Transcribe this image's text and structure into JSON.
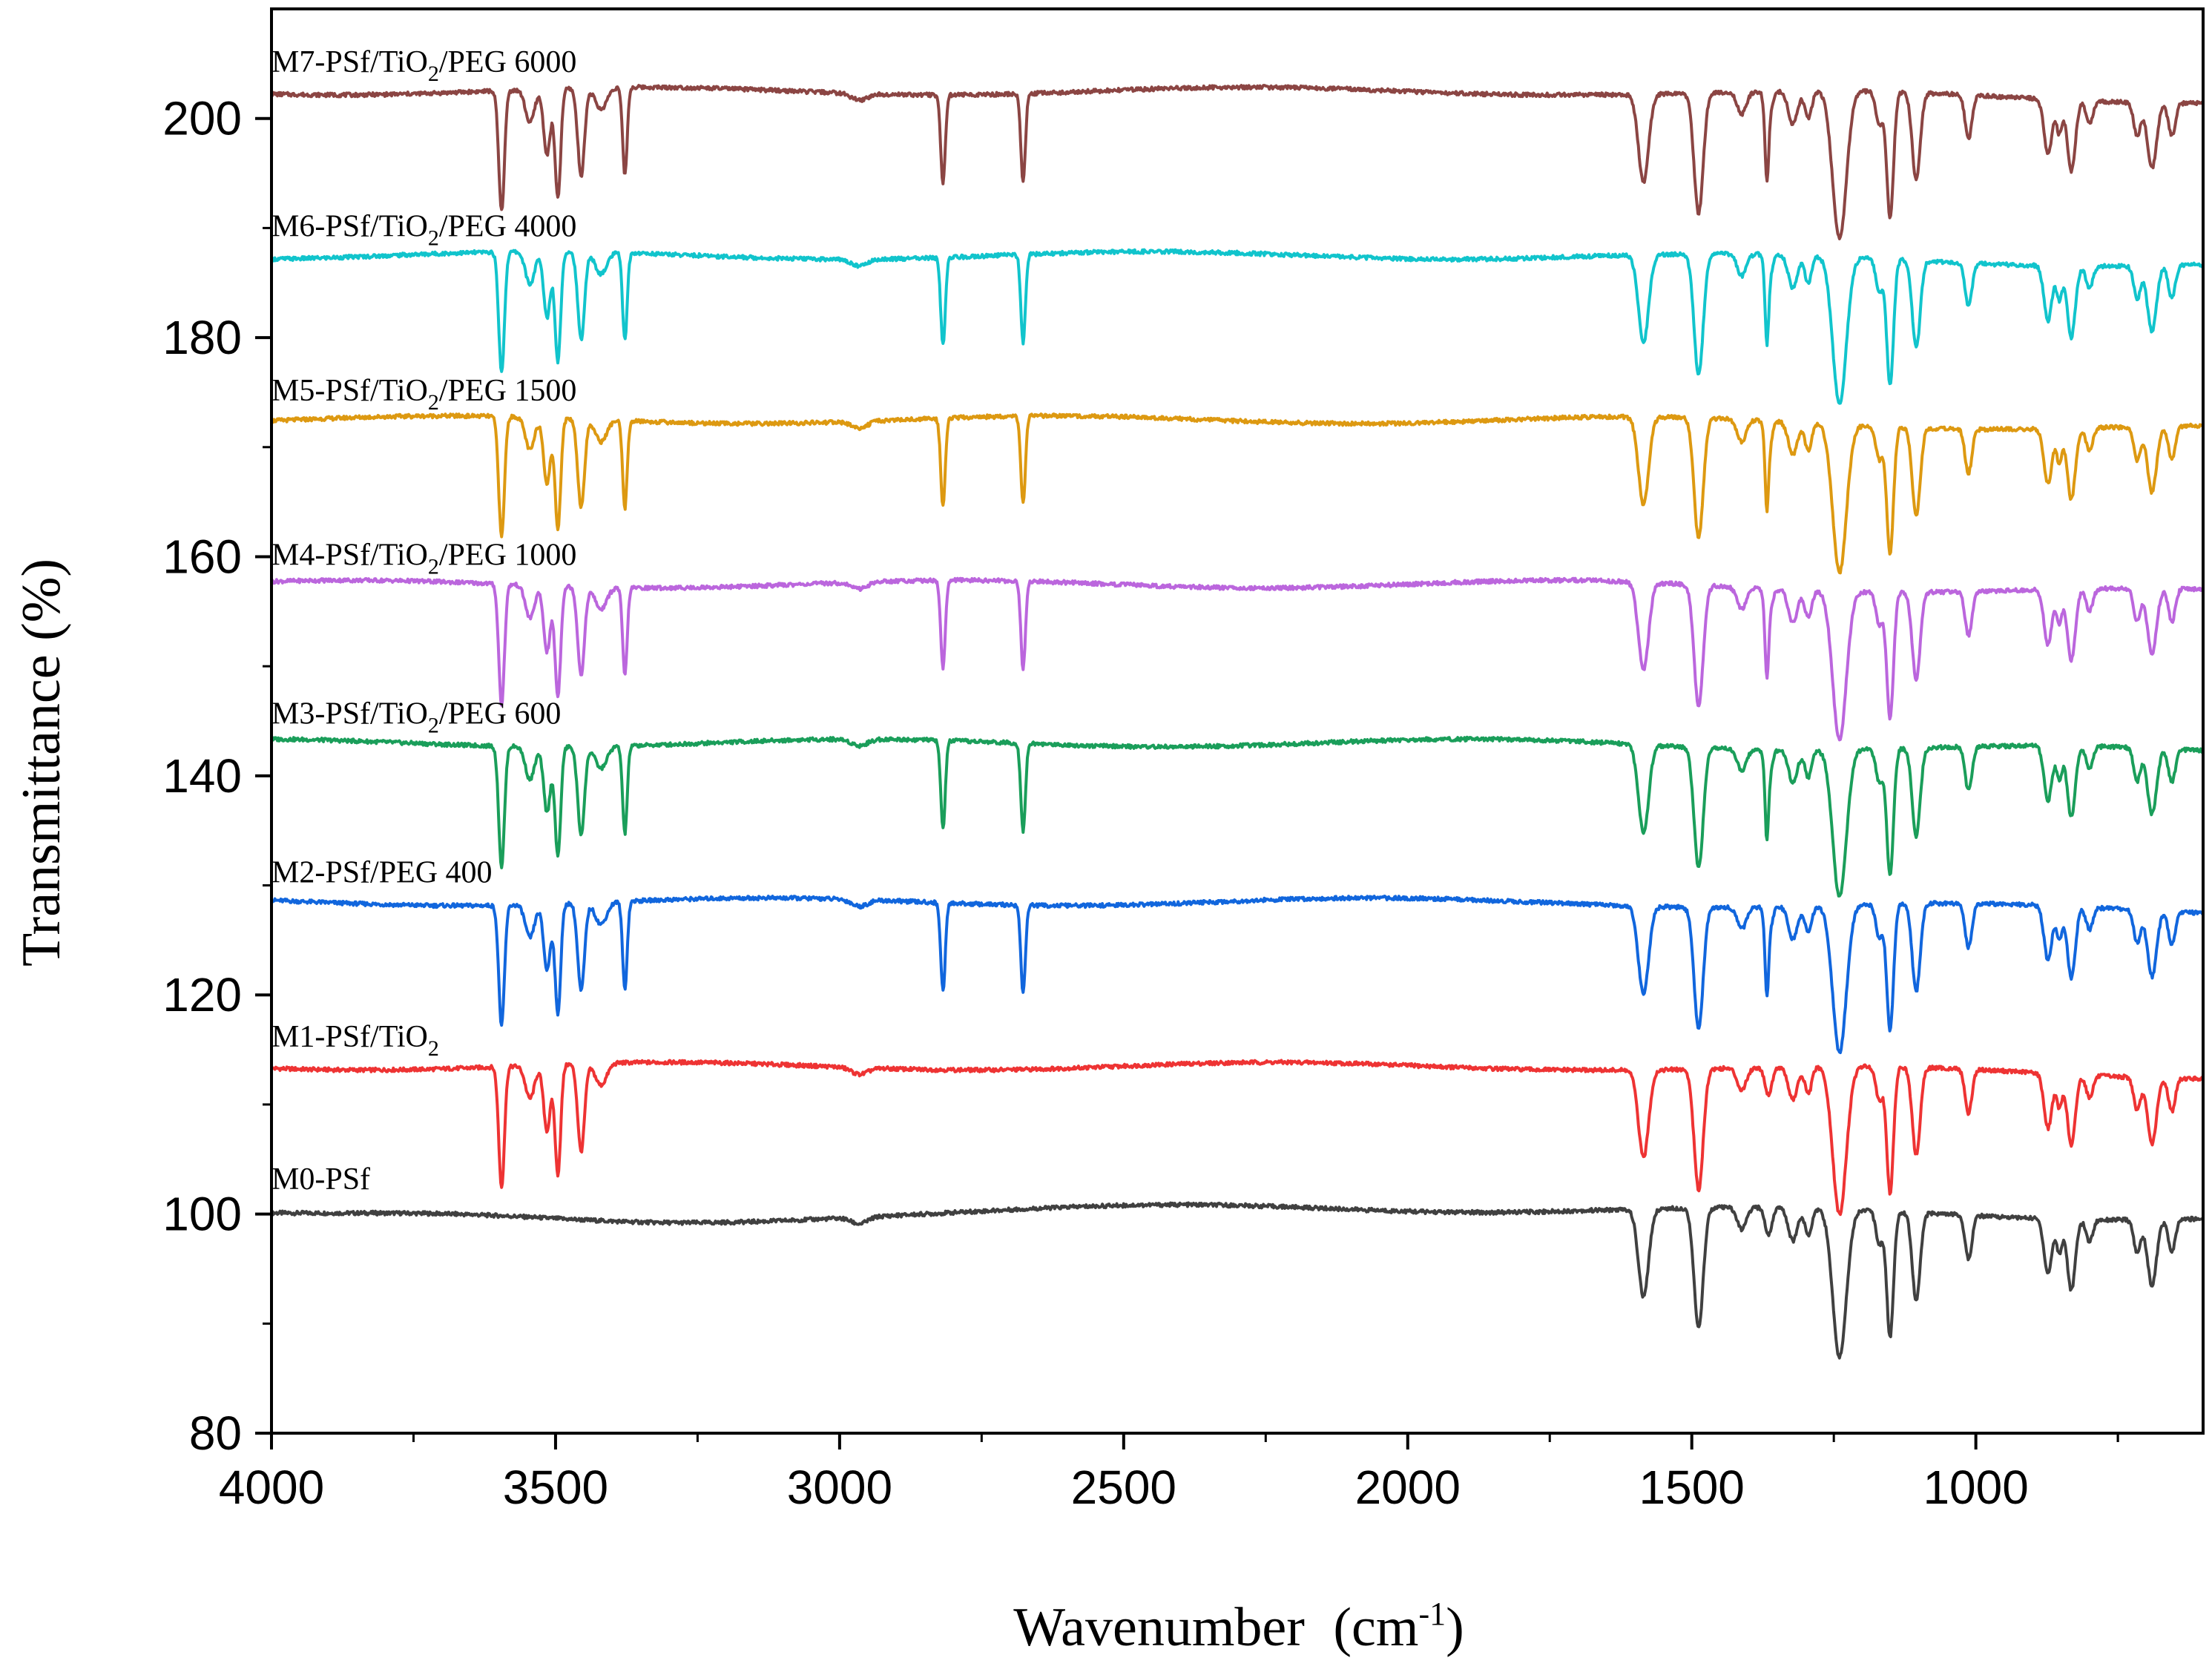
{
  "chart_data": {
    "type": "line",
    "title": "",
    "xlabel": "Wavenumber",
    "xlabel_unit_prefix": "(cm",
    "xlabel_unit_exp": "-1",
    "xlabel_unit_suffix": ")",
    "ylabel": "Transmittance (%)",
    "xlim": [
      4000,
      600
    ],
    "ylim": [
      80,
      210
    ],
    "x_ticks": [
      4000,
      3500,
      3000,
      2500,
      2000,
      1500,
      1000
    ],
    "x_tick_labels": [
      "4000",
      "3500",
      "3000",
      "2500",
      "2000",
      "1500",
      "1000"
    ],
    "y_ticks": [
      80,
      100,
      120,
      140,
      160,
      180,
      200
    ],
    "y_tick_labels": [
      "80",
      "100",
      "120",
      "140",
      "160",
      "180",
      "200"
    ],
    "grid": false,
    "series": [
      {
        "name": "M0-PSf",
        "label_pre": "M0-PSf",
        "label_sub": "",
        "label_post": "",
        "color": "#404040",
        "offset": 100.5,
        "has_tio2": false,
        "has_peg": false
      },
      {
        "name": "M1-PSf/TiO2",
        "label_pre": "M1-PSf/TiO",
        "label_sub": "2",
        "label_post": "",
        "color": "#ee3333",
        "offset": 113.5,
        "has_tio2": true,
        "has_peg": false
      },
      {
        "name": "M2-PSf/PEG 400",
        "label_pre": "M2-PSf/PEG 400",
        "label_sub": "",
        "label_post": "",
        "color": "#1166dd",
        "offset": 128.5,
        "has_tio2": true,
        "has_peg": true
      },
      {
        "name": "M3-PSf/TiO2/PEG 600",
        "label_pre": "M3-PSf/TiO",
        "label_sub": "2",
        "label_post": "/PEG 600",
        "color": "#1a9e5a",
        "offset": 143,
        "has_tio2": true,
        "has_peg": true
      },
      {
        "name": "M4-PSf/TiO2/PEG 1000",
        "label_pre": "M4-PSf/TiO",
        "label_sub": "2",
        "label_post": "/PEG 1000",
        "color": "#bb66dd",
        "offset": 157.5,
        "has_tio2": true,
        "has_peg": true
      },
      {
        "name": "M5-PSf/TiO2/PEG 1500",
        "label_pre": "M5-PSf/TiO",
        "label_sub": "2",
        "label_post": "/PEG 1500",
        "color": "#dd9911",
        "offset": 172.5,
        "has_tio2": true,
        "has_peg": true
      },
      {
        "name": "M6-PSf/TiO2/PEG 4000",
        "label_pre": "M6-PSf/TiO",
        "label_sub": "2",
        "label_post": "/PEG 4000",
        "color": "#11c4cc",
        "offset": 187.5,
        "has_tio2": true,
        "has_peg": true
      },
      {
        "name": "M7-PSf/TiO2/PEG 6000",
        "label_pre": "M7-PSf/TiO",
        "label_sub": "2",
        "label_post": "/PEG 6000",
        "color": "#8b4543",
        "offset": 202.5,
        "has_tio2": true,
        "has_peg": true
      }
    ],
    "common_peaks": [
      {
        "x": 1585,
        "depth": 8,
        "width": 9
      },
      {
        "x": 1488,
        "depth": 11,
        "width": 8
      },
      {
        "x": 1412,
        "depth": 2,
        "width": 8
      },
      {
        "x": 1365,
        "depth": 2.5,
        "width": 6
      },
      {
        "x": 1322,
        "depth": 3,
        "width": 8
      },
      {
        "x": 1295,
        "depth": 2.5,
        "width": 6
      },
      {
        "x": 1240,
        "depth": 13.5,
        "width": 12
      },
      {
        "x": 1170,
        "depth": 3,
        "width": 6
      },
      {
        "x": 1151,
        "depth": 11.5,
        "width": 6
      },
      {
        "x": 1105,
        "depth": 8,
        "width": 7
      },
      {
        "x": 1013,
        "depth": 4,
        "width": 6
      },
      {
        "x": 873,
        "depth": 5,
        "width": 7
      },
      {
        "x": 853,
        "depth": 3,
        "width": 5
      },
      {
        "x": 832,
        "depth": 6.5,
        "width": 7
      },
      {
        "x": 800,
        "depth": 2,
        "width": 6
      },
      {
        "x": 716,
        "depth": 3,
        "width": 6
      },
      {
        "x": 690,
        "depth": 6,
        "width": 8
      },
      {
        "x": 655,
        "depth": 3,
        "width": 6
      }
    ],
    "tio2_peaks": [
      {
        "x": 3595,
        "depth": 11,
        "width": 5
      },
      {
        "x": 3545,
        "depth": 3,
        "width": 8
      },
      {
        "x": 3515,
        "depth": 6,
        "width": 6
      },
      {
        "x": 3496,
        "depth": 10,
        "width": 5
      },
      {
        "x": 3455,
        "depth": 8,
        "width": 6
      },
      {
        "x": 3420,
        "depth": 2,
        "width": 10
      }
    ],
    "peg_peaks": [
      {
        "x": 3378,
        "depth": 8,
        "width": 4
      },
      {
        "x": 2818,
        "depth": 8,
        "width": 4
      },
      {
        "x": 2677,
        "depth": 8,
        "width": 4
      },
      {
        "x": 1368,
        "depth": 6,
        "width": 3
      }
    ]
  }
}
